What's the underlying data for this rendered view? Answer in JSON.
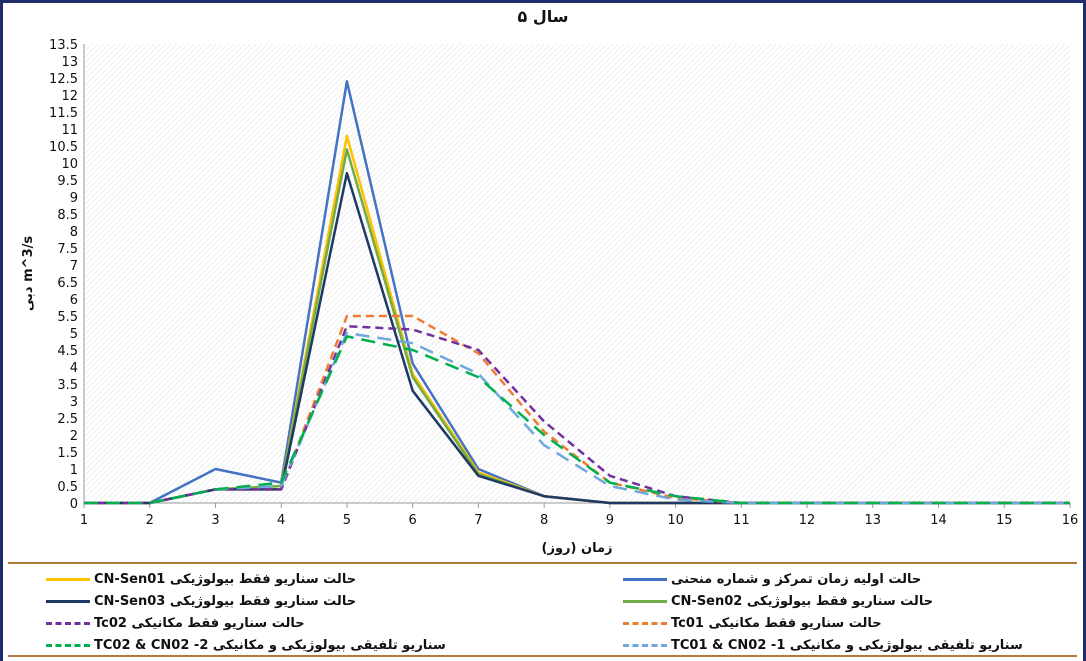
{
  "chart_data": {
    "type": "line",
    "title": "۵ سال",
    "xlabel": "زمان (روز)",
    "ylabel": "دبی m^3/s",
    "xlim": [
      1,
      16
    ],
    "ylim": [
      0,
      13.5
    ],
    "x_ticks": [
      1,
      2,
      3,
      4,
      5,
      6,
      7,
      8,
      9,
      10,
      11,
      12,
      13,
      14,
      15,
      16
    ],
    "y_ticks": [
      0,
      0.5,
      1,
      1.5,
      2,
      2.5,
      3,
      3.5,
      4,
      4.5,
      5,
      5.5,
      6,
      6.5,
      7,
      7.5,
      8,
      8.5,
      9,
      9.5,
      10,
      10.5,
      11,
      11.5,
      12,
      12.5,
      13,
      13.5
    ],
    "x": [
      1,
      2,
      3,
      4,
      5,
      6,
      7,
      8,
      9,
      10,
      11,
      12,
      13,
      14,
      15,
      16
    ],
    "series": [
      {
        "name": "حالت اولیه زمان تمرکز و شماره منحنی",
        "color": "#4472c4",
        "dash": "solid",
        "values": [
          0,
          0,
          1,
          0.6,
          12.4,
          4.1,
          1.0,
          0.2,
          0,
          0,
          0,
          0,
          0,
          0,
          0,
          0
        ]
      },
      {
        "name": "حالت سناریو فقط بیولوژیکی CN-Sen01",
        "color": "#ffc000",
        "dash": "solid",
        "values": [
          0,
          0,
          0.4,
          0.5,
          10.8,
          3.8,
          0.9,
          0.2,
          0,
          0,
          0,
          0,
          0,
          0,
          0,
          0
        ]
      },
      {
        "name": "حالت سناریو فقط بیولوژیکی CN-Sen02",
        "color": "#70ad47",
        "dash": "solid",
        "values": [
          0,
          0,
          0.4,
          0.5,
          10.4,
          3.7,
          0.85,
          0.2,
          0,
          0,
          0,
          0,
          0,
          0,
          0,
          0
        ]
      },
      {
        "name": "حالت سناریو فقط بیولوژیکی CN-Sen03",
        "color": "#1f3864",
        "dash": "solid",
        "values": [
          0,
          0,
          0.4,
          0.4,
          9.7,
          3.3,
          0.8,
          0.2,
          0,
          0,
          0,
          0,
          0,
          0,
          0,
          0
        ]
      },
      {
        "name": "حالت سناریو فقط مکانیکی Tc01",
        "color": "#ed7d31",
        "dash": "dash",
        "values": [
          0,
          0,
          0.4,
          0.4,
          5.5,
          5.5,
          4.4,
          2.1,
          0.6,
          0.15,
          0,
          0,
          0,
          0,
          0,
          0
        ]
      },
      {
        "name": "حالت سناریو فقط مکانیکی Tc02",
        "color": "#7030a0",
        "dash": "dash",
        "values": [
          0,
          0,
          0.4,
          0.4,
          5.2,
          5.1,
          4.5,
          2.4,
          0.8,
          0.2,
          0,
          0,
          0,
          0,
          0,
          0
        ]
      },
      {
        "name": "سناریو تلفیقی بیولوژیکی و مکانیکی 1- TC01 & CN02",
        "color": "#6fa8dc",
        "dash": "longdash",
        "values": [
          0,
          0,
          0.4,
          0.5,
          5.0,
          4.7,
          3.8,
          1.7,
          0.5,
          0.1,
          0,
          0,
          0,
          0,
          0,
          0
        ]
      },
      {
        "name": "سناریو تلفیقی بیولوژیکی و مکانیکی 2- TC02 & CN02",
        "color": "#00b050",
        "dash": "longdash",
        "values": [
          0,
          0,
          0.4,
          0.6,
          4.9,
          4.5,
          3.7,
          2.0,
          0.6,
          0.2,
          0,
          0,
          0,
          0,
          0,
          0
        ]
      }
    ],
    "grid": false,
    "legend_position": "bottom"
  }
}
